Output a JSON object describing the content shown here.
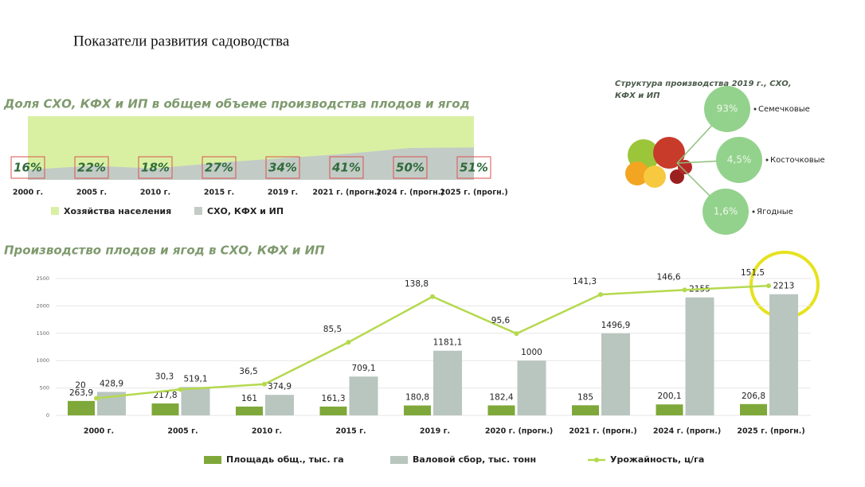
{
  "page_title": "Показатели развития садоводства",
  "chart_data": [
    {
      "type": "area",
      "title": "Доля СХО, КФХ и ИП в общем объеме производства плодов и ягод",
      "categories": [
        "2000 г.",
        "2005 г.",
        "2010 г.",
        "2015 г.",
        "2019 г.",
        "2021 г. (прогн.)",
        "2024 г. (прогн.)",
        "2025 г. (прогн.)"
      ],
      "ylim": [
        0,
        100
      ],
      "stacked": true,
      "series": [
        {
          "name": "Хозяйства населения",
          "color": "#d9f0a3",
          "values": [
            84,
            78,
            82,
            73,
            66,
            59,
            50,
            49
          ]
        },
        {
          "name": "СХО, КФХ и ИП",
          "color": "#c3cbc6",
          "values": [
            16,
            22,
            18,
            27,
            34,
            41,
            50,
            51
          ],
          "value_labels": [
            "16%",
            "22%",
            "18%",
            "27%",
            "34%",
            "41%",
            "50%",
            "51%"
          ]
        }
      ]
    },
    {
      "type": "bubbles",
      "title": "Структура производства 2019 г., СХО, КФХ и ИП",
      "categories": [
        "Семечковые",
        "Косточковые",
        "Ягодные"
      ],
      "values": [
        93,
        4.5,
        1.6
      ],
      "value_labels": [
        "93%",
        "4,5%",
        "1,6%"
      ],
      "color": "#93d28c"
    },
    {
      "type": "combo",
      "title": "Производство плодов и ягод в СХО, КФХ и ИП",
      "categories": [
        "2000 г.",
        "2005 г.",
        "2010 г.",
        "2015 г.",
        "2019 г.",
        "2020 г. (прогн.)",
        "2021 г. (прогн.)",
        "2024 г. (прогн.)",
        "2025 г. (прогн.)"
      ],
      "ylim": [
        0,
        2500
      ],
      "yticks": [
        0,
        500,
        1000,
        1500,
        2000,
        2500
      ],
      "y2lim": [
        0,
        160
      ],
      "grid": true,
      "series": [
        {
          "name": "Площадь общ., тыс. га",
          "type": "bar",
          "color": "#7fa83a",
          "values": [
            263.9,
            217.8,
            161,
            161.3,
            180.8,
            182.4,
            185,
            200.1,
            206.8
          ],
          "value_labels": [
            "263,9",
            "217,8",
            "161",
            "161,3",
            "180,8",
            "182,4",
            "185",
            "200,1",
            "206,8"
          ]
        },
        {
          "name": "Валовой сбор, тыс. тонн",
          "type": "bar",
          "color": "#b9c6bf",
          "values": [
            428.9,
            519.1,
            374.9,
            709.1,
            1181.1,
            1000,
            1496.9,
            2155,
            2213
          ],
          "value_labels": [
            "428,9",
            "519,1",
            "374,9",
            "709,1",
            "1181,1",
            "1000",
            "1496,9",
            "2155",
            "2213"
          ]
        },
        {
          "name": "Урожайность, ц/га",
          "type": "line",
          "axis": "y2",
          "color": "#b5d94e",
          "values": [
            20,
            30.3,
            36.5,
            85.5,
            138.8,
            95.6,
            141.3,
            146.6,
            151.5
          ],
          "value_labels": [
            "20",
            "30,3",
            "36,5",
            "85,5",
            "138,8",
            "95,6",
            "141,3",
            "146,6",
            "151,5"
          ]
        }
      ]
    }
  ]
}
